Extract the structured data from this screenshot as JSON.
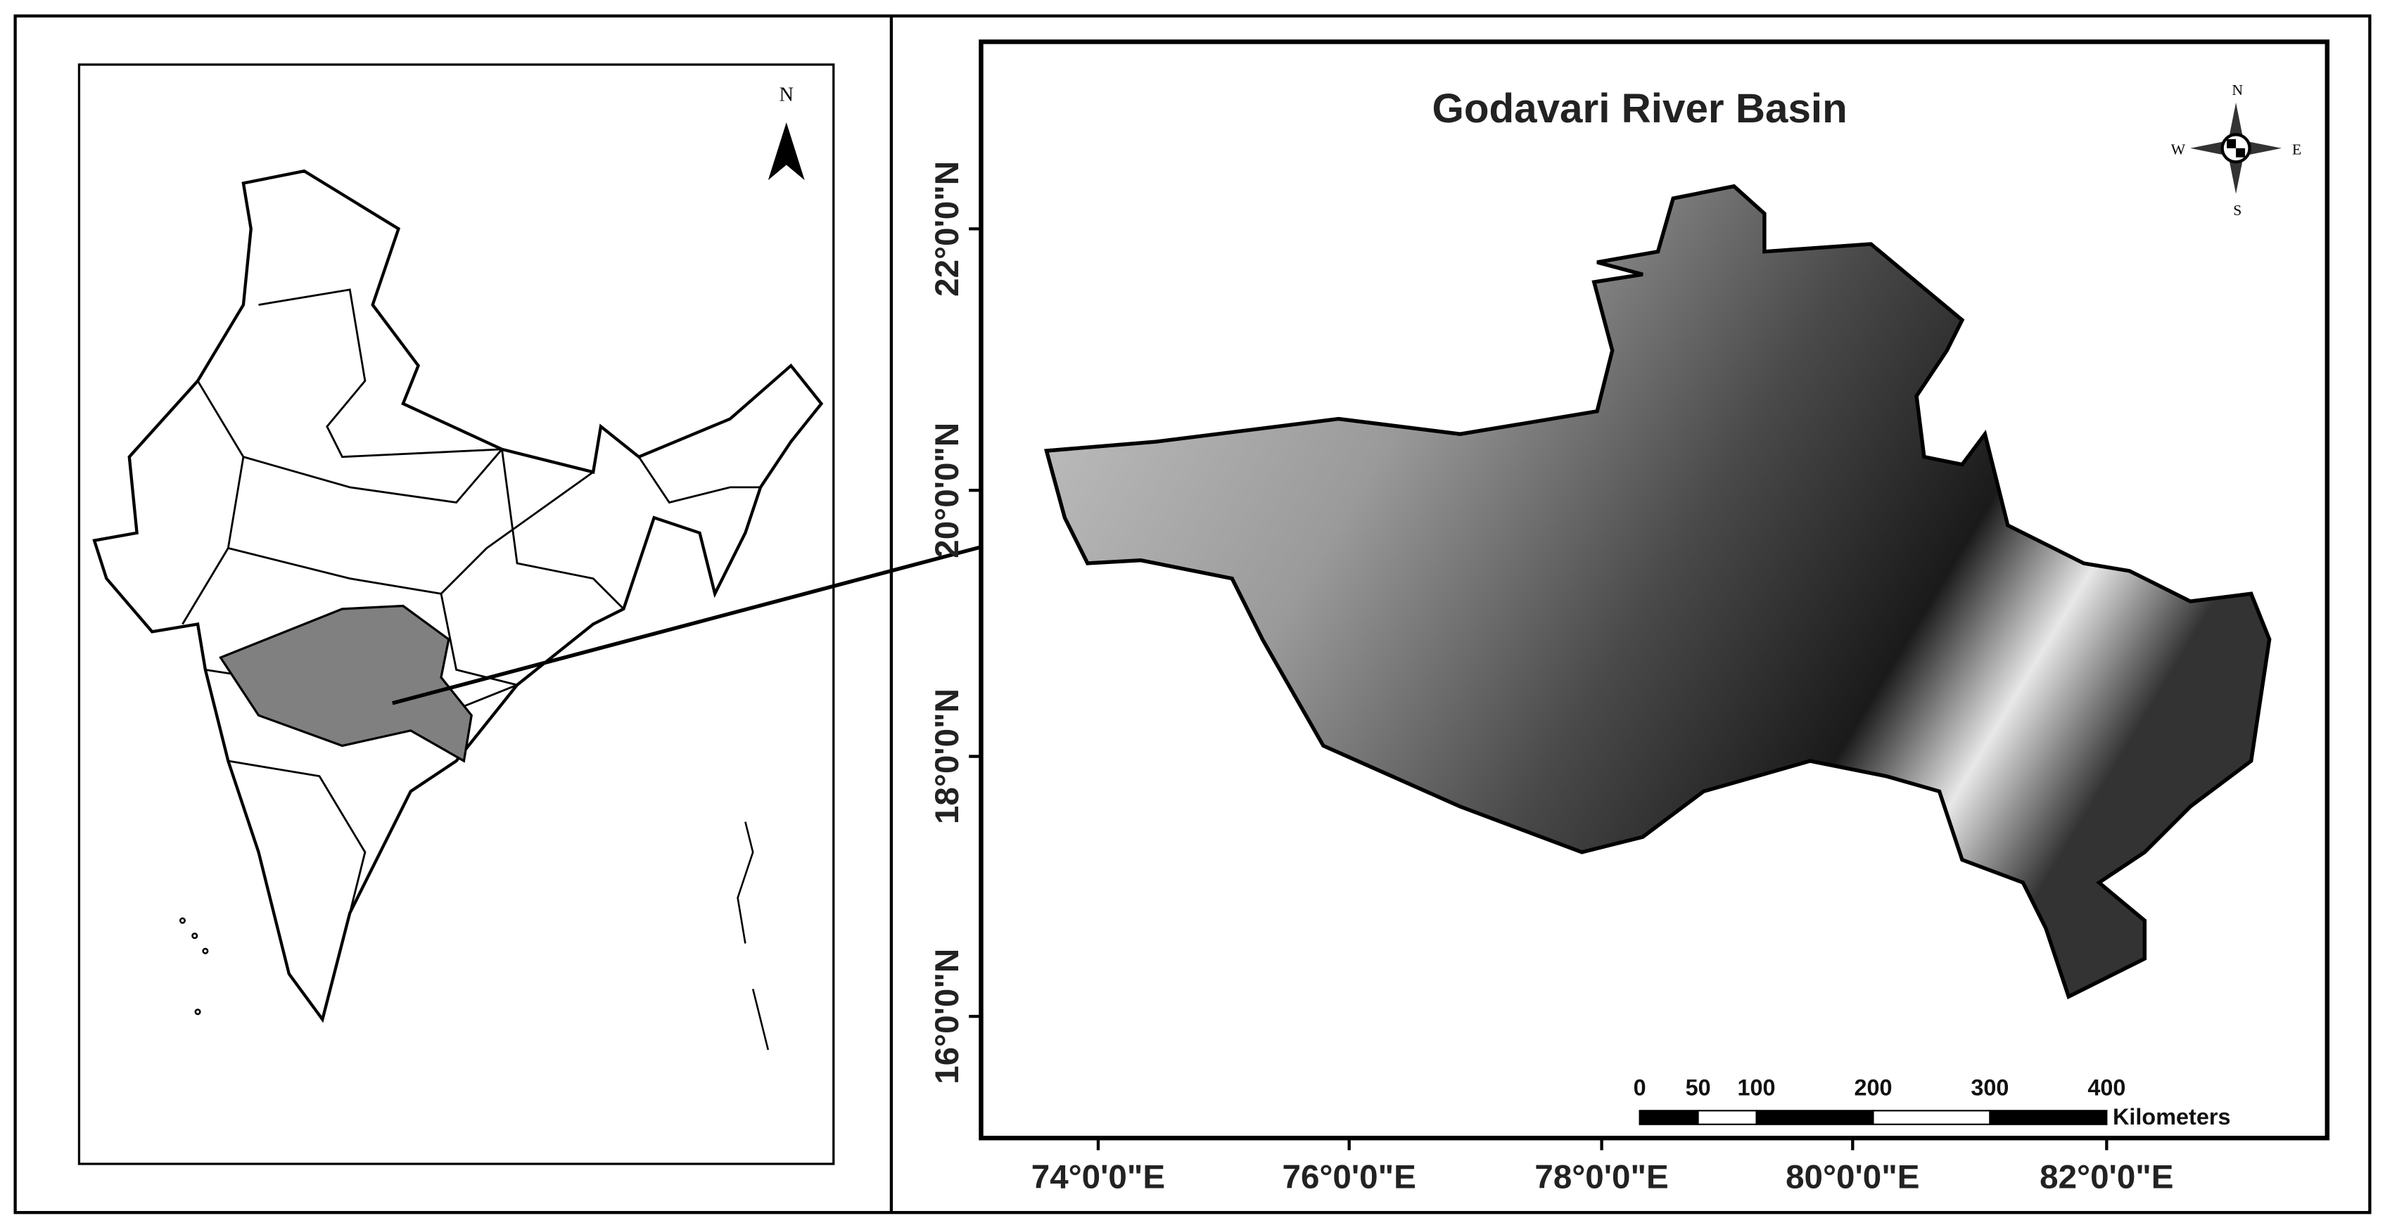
{
  "inset_map": {
    "north_label": "N"
  },
  "main_map": {
    "title": "Godavari River Basin",
    "compass": {
      "north": "N",
      "south": "S",
      "east": "E",
      "west": "W"
    },
    "latitude_labels": [
      "22°0'0\"N",
      "20°0'0\"N",
      "18°0'0\"N",
      "16°0'0\"N"
    ],
    "longitude_labels": [
      "74°0'0\"E",
      "76°0'0\"E",
      "78°0'0\"E",
      "80°0'0\"E",
      "82°0'0\"E"
    ],
    "scale_bar": {
      "labels": [
        0,
        50,
        100,
        200,
        300,
        400
      ],
      "unit": "Kilometers"
    }
  }
}
